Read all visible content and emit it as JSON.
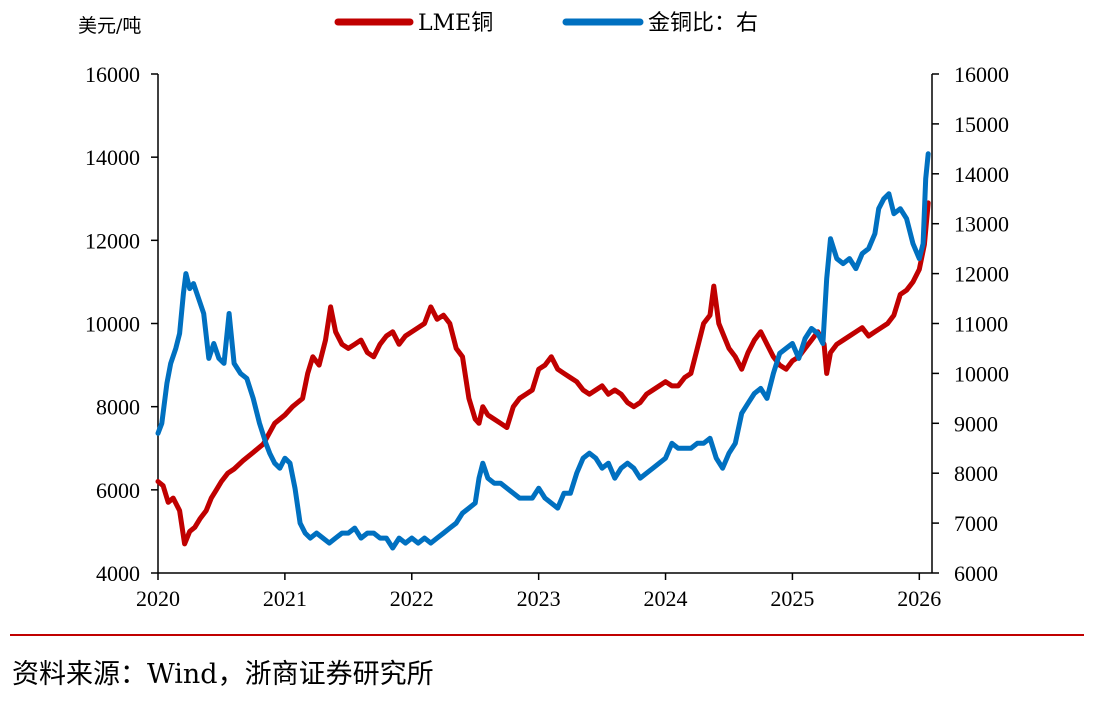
{
  "colors": {
    "copper": "#c00000",
    "ratio": "#0070c0",
    "axis": "#000000",
    "divider": "#c00000"
  },
  "legend": {
    "position": "top-center"
  },
  "source": "资料来源：Wind，浙商证券研究所",
  "chart_data": {
    "type": "line",
    "ylabel_left": "美元/吨",
    "ylabel_right": "",
    "xlim": [
      2020.0,
      2026.1
    ],
    "ylim_left": [
      4000,
      16000
    ],
    "ylim_right": [
      6000,
      16000
    ],
    "x_ticks": [
      2020,
      2021,
      2022,
      2023,
      2024,
      2025,
      2026
    ],
    "y_ticks_left": [
      4000,
      6000,
      8000,
      10000,
      12000,
      14000,
      16000
    ],
    "y_ticks_right": [
      6000,
      7000,
      8000,
      9000,
      10000,
      11000,
      12000,
      13000,
      14000,
      15000,
      16000
    ],
    "grid": false,
    "series": [
      {
        "name": "LME铜",
        "axis": "left",
        "x": [
          2020.0,
          2020.04,
          2020.08,
          2020.12,
          2020.17,
          2020.21,
          2020.25,
          2020.29,
          2020.33,
          2020.38,
          2020.42,
          2020.46,
          2020.5,
          2020.55,
          2020.6,
          2020.67,
          2020.75,
          2020.83,
          2020.92,
          2021.0,
          2021.06,
          2021.1,
          2021.14,
          2021.18,
          2021.22,
          2021.27,
          2021.32,
          2021.36,
          2021.4,
          2021.45,
          2021.5,
          2021.55,
          2021.6,
          2021.65,
          2021.7,
          2021.75,
          2021.8,
          2021.85,
          2021.9,
          2021.95,
          2022.0,
          2022.05,
          2022.1,
          2022.15,
          2022.2,
          2022.25,
          2022.3,
          2022.35,
          2022.4,
          2022.45,
          2022.5,
          2022.53,
          2022.56,
          2022.6,
          2022.65,
          2022.7,
          2022.75,
          2022.8,
          2022.85,
          2022.9,
          2022.95,
          2023.0,
          2023.05,
          2023.1,
          2023.15,
          2023.2,
          2023.25,
          2023.3,
          2023.35,
          2023.4,
          2023.45,
          2023.5,
          2023.55,
          2023.6,
          2023.65,
          2023.7,
          2023.75,
          2023.8,
          2023.85,
          2023.9,
          2023.95,
          2024.0,
          2024.05,
          2024.1,
          2024.15,
          2024.2,
          2024.25,
          2024.3,
          2024.35,
          2024.38,
          2024.42,
          2024.46,
          2024.5,
          2024.55,
          2024.6,
          2024.65,
          2024.7,
          2024.75,
          2024.8,
          2024.85,
          2024.9,
          2024.95,
          2025.0,
          2025.05,
          2025.1,
          2025.15,
          2025.2,
          2025.25,
          2025.27,
          2025.3,
          2025.35,
          2025.4,
          2025.45,
          2025.5,
          2025.55,
          2025.6,
          2025.65,
          2025.7,
          2025.75,
          2025.8,
          2025.85,
          2025.9,
          2025.95,
          2026.0,
          2026.04,
          2026.07
        ],
        "values": [
          6200,
          6100,
          5700,
          5800,
          5500,
          4700,
          5000,
          5100,
          5300,
          5500,
          5800,
          6000,
          6200,
          6400,
          6500,
          6700,
          6900,
          7100,
          7600,
          7800,
          8000,
          8100,
          8200,
          8800,
          9200,
          9000,
          9600,
          10400,
          9800,
          9500,
          9400,
          9500,
          9600,
          9300,
          9200,
          9500,
          9700,
          9800,
          9500,
          9700,
          9800,
          9900,
          10000,
          10400,
          10100,
          10200,
          10000,
          9400,
          9200,
          8200,
          7700,
          7600,
          8000,
          7800,
          7700,
          7600,
          7500,
          8000,
          8200,
          8300,
          8400,
          8900,
          9000,
          9200,
          8900,
          8800,
          8700,
          8600,
          8400,
          8300,
          8400,
          8500,
          8300,
          8400,
          8300,
          8100,
          8000,
          8100,
          8300,
          8400,
          8500,
          8600,
          8500,
          8500,
          8700,
          8800,
          9400,
          10000,
          10200,
          10900,
          10000,
          9700,
          9400,
          9200,
          8900,
          9300,
          9600,
          9800,
          9500,
          9200,
          9000,
          8900,
          9100,
          9200,
          9400,
          9600,
          9800,
          9500,
          8800,
          9300,
          9500,
          9600,
          9700,
          9800,
          9900,
          9700,
          9800,
          9900,
          10000,
          10200,
          10700,
          10800,
          11000,
          11300,
          11900,
          12900
        ]
      },
      {
        "name": "金铜比：右",
        "axis": "right",
        "x": [
          2020.0,
          2020.03,
          2020.07,
          2020.1,
          2020.14,
          2020.17,
          2020.2,
          2020.22,
          2020.25,
          2020.28,
          2020.32,
          2020.36,
          2020.4,
          2020.44,
          2020.48,
          2020.52,
          2020.56,
          2020.6,
          2020.65,
          2020.7,
          2020.75,
          2020.8,
          2020.85,
          2020.88,
          2020.92,
          2020.96,
          2021.0,
          2021.04,
          2021.08,
          2021.12,
          2021.16,
          2021.2,
          2021.25,
          2021.3,
          2021.35,
          2021.4,
          2021.45,
          2021.5,
          2021.55,
          2021.6,
          2021.65,
          2021.7,
          2021.75,
          2021.8,
          2021.85,
          2021.9,
          2021.95,
          2022.0,
          2022.05,
          2022.1,
          2022.15,
          2022.2,
          2022.25,
          2022.3,
          2022.35,
          2022.4,
          2022.45,
          2022.5,
          2022.53,
          2022.56,
          2022.6,
          2022.65,
          2022.7,
          2022.75,
          2022.8,
          2022.85,
          2022.9,
          2022.95,
          2023.0,
          2023.05,
          2023.1,
          2023.15,
          2023.2,
          2023.25,
          2023.3,
          2023.35,
          2023.4,
          2023.45,
          2023.5,
          2023.55,
          2023.6,
          2023.65,
          2023.7,
          2023.75,
          2023.8,
          2023.85,
          2023.9,
          2023.95,
          2024.0,
          2024.05,
          2024.1,
          2024.15,
          2024.2,
          2024.25,
          2024.3,
          2024.35,
          2024.4,
          2024.45,
          2024.5,
          2024.55,
          2024.6,
          2024.65,
          2024.7,
          2024.75,
          2024.8,
          2024.85,
          2024.9,
          2024.95,
          2025.0,
          2025.05,
          2025.1,
          2025.15,
          2025.2,
          2025.24,
          2025.27,
          2025.3,
          2025.35,
          2025.4,
          2025.45,
          2025.5,
          2025.55,
          2025.6,
          2025.65,
          2025.68,
          2025.72,
          2025.76,
          2025.8,
          2025.85,
          2025.9,
          2025.95,
          2026.0,
          2026.03,
          2026.05,
          2026.07
        ],
        "values": [
          8800,
          9000,
          9800,
          10200,
          10500,
          10800,
          11600,
          12000,
          11700,
          11800,
          11500,
          11200,
          10300,
          10600,
          10300,
          10200,
          11200,
          10200,
          10000,
          9900,
          9500,
          9000,
          8600,
          8400,
          8200,
          8100,
          8300,
          8200,
          7700,
          7000,
          6800,
          6700,
          6800,
          6700,
          6600,
          6700,
          6800,
          6800,
          6900,
          6700,
          6800,
          6800,
          6700,
          6700,
          6500,
          6700,
          6600,
          6700,
          6600,
          6700,
          6600,
          6700,
          6800,
          6900,
          7000,
          7200,
          7300,
          7400,
          7900,
          8200,
          7900,
          7800,
          7800,
          7700,
          7600,
          7500,
          7500,
          7500,
          7700,
          7500,
          7400,
          7300,
          7600,
          7600,
          8000,
          8300,
          8400,
          8300,
          8100,
          8200,
          7900,
          8100,
          8200,
          8100,
          7900,
          8000,
          8100,
          8200,
          8300,
          8600,
          8500,
          8500,
          8500,
          8600,
          8600,
          8700,
          8300,
          8100,
          8400,
          8600,
          9200,
          9400,
          9600,
          9700,
          9500,
          10000,
          10400,
          10500,
          10600,
          10300,
          10700,
          10900,
          10800,
          10600,
          11900,
          12700,
          12300,
          12200,
          12300,
          12100,
          12400,
          12500,
          12800,
          13300,
          13500,
          13600,
          13200,
          13300,
          13100,
          12600,
          12300,
          12600,
          13900,
          14400
        ]
      }
    ]
  }
}
